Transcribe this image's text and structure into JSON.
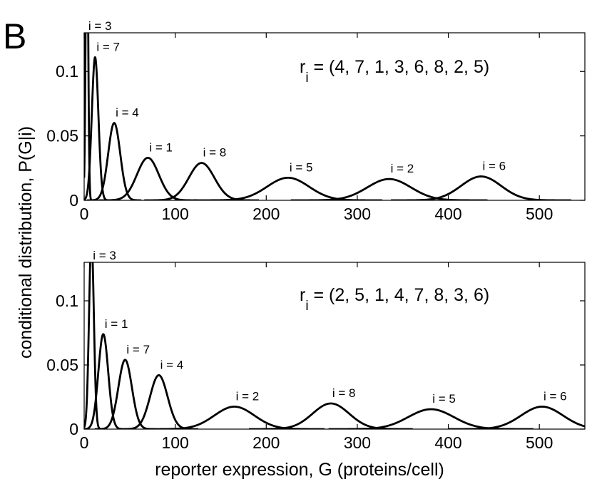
{
  "figure": {
    "panel_label": "B",
    "ylabel": "conditional distribution, P(G|i)",
    "xlabel": "reporter expression, G (proteins/cell)"
  },
  "chart_data": [
    {
      "type": "line",
      "xlim": [
        0,
        550
      ],
      "ylim": [
        0,
        0.13
      ],
      "xticks": [
        0,
        100,
        200,
        300,
        400,
        500
      ],
      "yticks": [
        0,
        0.05,
        0.1
      ],
      "ytick_labels": [
        "0",
        "0.05",
        "0.1"
      ],
      "annotation": {
        "base": "r",
        "sub": "i",
        "rest": " = (4, 7, 1, 3, 6, 8, 2, 5)"
      },
      "series": [
        {
          "label": "i = 3",
          "peak_x": 3,
          "peak_y": 0.25,
          "width": 1.3
        },
        {
          "label": "i = 7",
          "peak_x": 12,
          "peak_y": 0.111,
          "width": 3.6
        },
        {
          "label": "i = 4",
          "peak_x": 33,
          "peak_y": 0.06,
          "width": 6.6
        },
        {
          "label": "i = 1",
          "peak_x": 70,
          "peak_y": 0.033,
          "width": 12
        },
        {
          "label": "i = 8",
          "peak_x": 129,
          "peak_y": 0.029,
          "width": 14
        },
        {
          "label": "i = 5",
          "peak_x": 224,
          "peak_y": 0.0175,
          "width": 23
        },
        {
          "label": "i = 2",
          "peak_x": 335,
          "peak_y": 0.0165,
          "width": 24
        },
        {
          "label": "i = 6",
          "peak_x": 436,
          "peak_y": 0.0185,
          "width": 22
        }
      ]
    },
    {
      "type": "line",
      "xlim": [
        0,
        550
      ],
      "ylim": [
        0,
        0.13
      ],
      "xticks": [
        0,
        100,
        200,
        300,
        400,
        500
      ],
      "yticks": [
        0,
        0.05,
        0.1
      ],
      "ytick_labels": [
        "0",
        "0.05",
        "0.1"
      ],
      "annotation": {
        "base": "r",
        "sub": "i",
        "rest": " = (2, 5, 1, 4, 7, 8, 3, 6)"
      },
      "series": [
        {
          "label": "i = 3",
          "peak_x": 8,
          "peak_y": 0.15,
          "width": 2.6
        },
        {
          "label": "i = 1",
          "peak_x": 21,
          "peak_y": 0.074,
          "width": 5.4
        },
        {
          "label": "i = 7",
          "peak_x": 45,
          "peak_y": 0.054,
          "width": 7.4
        },
        {
          "label": "i = 4",
          "peak_x": 82,
          "peak_y": 0.042,
          "width": 9.6
        },
        {
          "label": "i = 2",
          "peak_x": 165,
          "peak_y": 0.0175,
          "width": 22
        },
        {
          "label": "i = 8",
          "peak_x": 271,
          "peak_y": 0.02,
          "width": 20
        },
        {
          "label": "i = 5",
          "peak_x": 381,
          "peak_y": 0.0155,
          "width": 25
        },
        {
          "label": "i = 6",
          "peak_x": 503,
          "peak_y": 0.0175,
          "width": 23
        }
      ]
    }
  ]
}
